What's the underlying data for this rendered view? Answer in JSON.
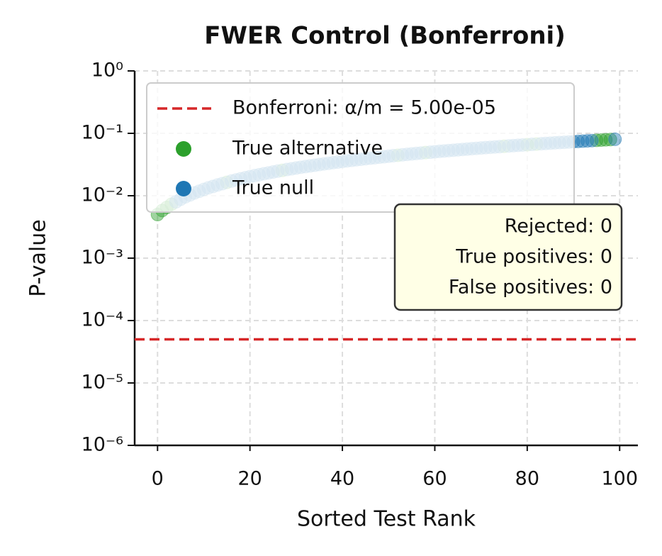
{
  "chart_data": {
    "type": "scatter",
    "title": "FWER Control (Bonferroni)",
    "x_label": "Sorted Test Rank",
    "y_label": "P-value",
    "log_y": true,
    "grid": true,
    "xlim": [
      -4.95,
      103.95
    ],
    "ylim": [
      1e-06,
      1
    ],
    "xticks": [
      0,
      20,
      40,
      60,
      80,
      100
    ],
    "yticks": [
      {
        "value": 1e-06,
        "label": "10⁻⁶"
      },
      {
        "value": 1e-05,
        "label": "10⁻⁵"
      },
      {
        "value": 0.0001,
        "label": "10⁻⁴"
      },
      {
        "value": 0.001,
        "label": "10⁻³"
      },
      {
        "value": 0.01,
        "label": "10⁻²"
      },
      {
        "value": 0.1,
        "label": "10⁻¹"
      },
      {
        "value": 1,
        "label": "10⁰"
      }
    ],
    "threshold": {
      "name": "Bonferroni: α/m = 5.00e-05",
      "value": 5e-05,
      "color": "#d62728"
    },
    "series": [
      {
        "name": "True alternative",
        "color": "#2ca02c",
        "x": [
          0,
          1,
          2,
          3,
          15,
          27,
          52,
          58,
          75,
          80,
          82,
          95,
          96,
          97,
          98
        ],
        "values": [
          0.005,
          0.0058,
          0.0065,
          0.0073,
          0.0164,
          0.0255,
          0.0445,
          0.0491,
          0.062,
          0.0658,
          0.0673,
          0.0772,
          0.078,
          0.0787,
          0.0795
        ]
      },
      {
        "name": "True null",
        "color": "#1f77b4",
        "x": [
          4,
          5,
          6,
          7,
          8,
          9,
          10,
          11,
          12,
          13,
          14,
          16,
          17,
          18,
          19,
          20,
          21,
          22,
          23,
          24,
          25,
          26,
          28,
          29,
          30,
          31,
          32,
          33,
          34,
          35,
          36,
          37,
          38,
          39,
          40,
          41,
          42,
          43,
          44,
          45,
          46,
          47,
          48,
          49,
          50,
          51,
          53,
          54,
          55,
          56,
          57,
          59,
          60,
          61,
          62,
          63,
          64,
          65,
          66,
          67,
          68,
          69,
          70,
          71,
          72,
          73,
          74,
          76,
          77,
          78,
          79,
          81,
          83,
          84,
          85,
          86,
          87,
          88,
          89,
          90,
          91,
          92,
          93,
          94,
          99
        ],
        "values": [
          0.008,
          0.0088,
          0.0096,
          0.0103,
          0.0111,
          0.0118,
          0.0126,
          0.0134,
          0.0141,
          0.0149,
          0.0156,
          0.0172,
          0.0179,
          0.0187,
          0.0194,
          0.0202,
          0.021,
          0.0217,
          0.0225,
          0.0232,
          0.024,
          0.0248,
          0.0263,
          0.027,
          0.0278,
          0.0286,
          0.0293,
          0.0301,
          0.0308,
          0.0316,
          0.0324,
          0.0331,
          0.0339,
          0.0346,
          0.0354,
          0.0362,
          0.0369,
          0.0377,
          0.0384,
          0.0392,
          0.04,
          0.0407,
          0.0415,
          0.0422,
          0.043,
          0.0438,
          0.0453,
          0.046,
          0.0468,
          0.0476,
          0.0483,
          0.0498,
          0.0506,
          0.0514,
          0.0521,
          0.0529,
          0.0536,
          0.0544,
          0.0552,
          0.0559,
          0.0567,
          0.0574,
          0.0582,
          0.059,
          0.0597,
          0.0605,
          0.0612,
          0.0628,
          0.0635,
          0.0643,
          0.065,
          0.0666,
          0.0681,
          0.0688,
          0.0696,
          0.0704,
          0.0711,
          0.0719,
          0.0726,
          0.0734,
          0.0742,
          0.0749,
          0.0757,
          0.0764,
          0.0802
        ]
      }
    ],
    "annotation": [
      "Rejected: 0",
      "True positives: 0",
      "False positives: 0"
    ]
  }
}
